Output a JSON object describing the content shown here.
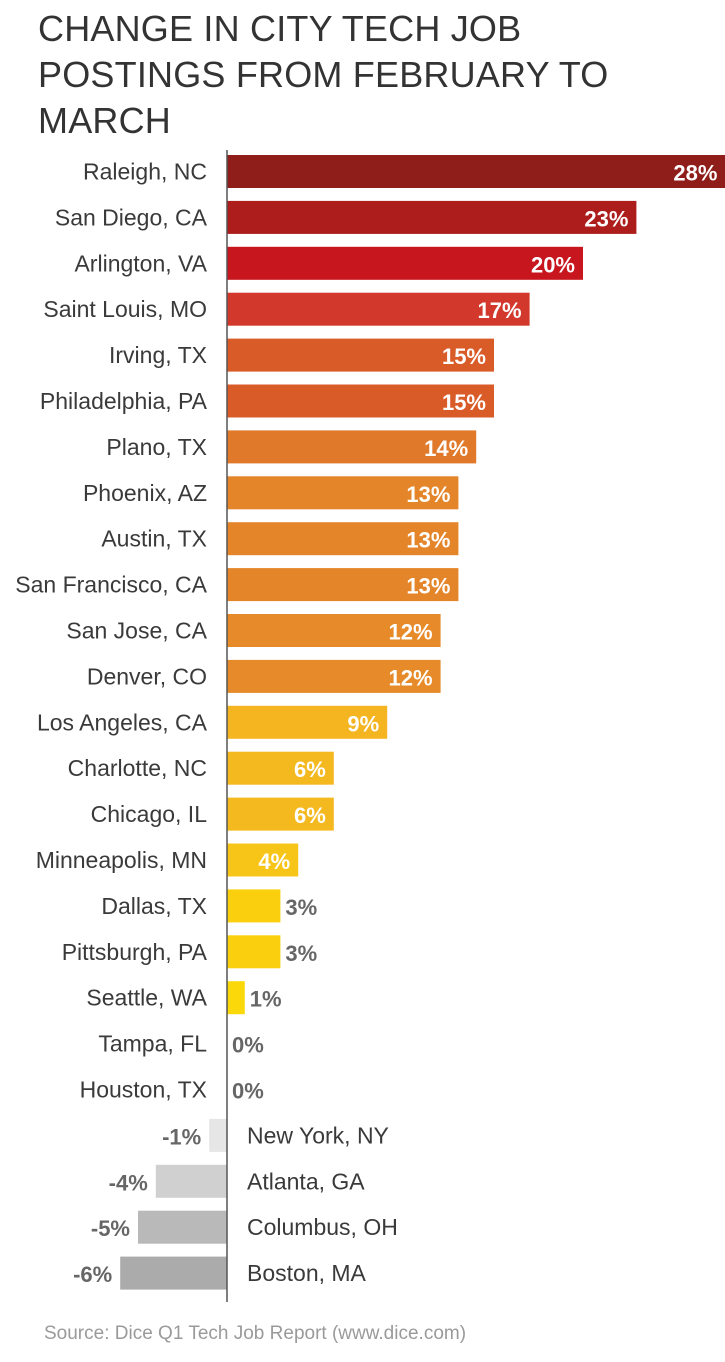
{
  "chart_data": {
    "type": "bar",
    "orientation": "horizontal",
    "title": "CHANGE IN CITY TECH JOB POSTINGS FROM FEBRUARY TO MARCH",
    "source": "Source: Dice Q1 Tech Job Report (www.dice.com)",
    "unit": "%",
    "grid": false,
    "xlim": [
      -6,
      28
    ],
    "categories": [
      "Raleigh, NC",
      "San Diego, CA",
      "Arlington, VA",
      "Saint Louis, MO",
      "Irving, TX",
      "Philadelphia, PA",
      "Plano, TX",
      "Phoenix, AZ",
      "Austin, TX",
      "San Francisco, CA",
      "San Jose, CA",
      "Denver, CO",
      "Los Angeles, CA",
      "Charlotte, NC",
      "Chicago, IL",
      "Minneapolis, MN",
      "Dallas, TX",
      "Pittsburgh, PA",
      "Seattle, WA",
      "Tampa, FL",
      "Houston, TX",
      "New York, NY",
      "Atlanta, GA",
      "Columbus, OH",
      "Boston, MA"
    ],
    "values": [
      28,
      23,
      20,
      17,
      15,
      15,
      14,
      13,
      13,
      13,
      12,
      12,
      9,
      6,
      6,
      4,
      3,
      3,
      1,
      0,
      0,
      -1,
      -4,
      -5,
      -6
    ],
    "value_labels": [
      "28%",
      "23%",
      "20%",
      "17%",
      "15%",
      "15%",
      "14%",
      "13%",
      "13%",
      "13%",
      "12%",
      "12%",
      "9%",
      "6%",
      "6%",
      "4%",
      "3%",
      "3%",
      "1%",
      "0%",
      "0%",
      "-1%",
      "-4%",
      "-5%",
      "-6%"
    ],
    "colors": [
      "#8f1d19",
      "#ac1d1b",
      "#c8161e",
      "#d2392c",
      "#d95b28",
      "#d95b28",
      "#e1792a",
      "#e4852a",
      "#e4852a",
      "#e4852a",
      "#e68a2a",
      "#e68a2a",
      "#f5b520",
      "#f5b920",
      "#f5b920",
      "#f7c418",
      "#fad00e",
      "#fad00e",
      "#fbd80a",
      "#fbd80a",
      "#fbd80a",
      "#e6e6e6",
      "#d0d0d0",
      "#b9b9b9",
      "#ababab"
    ]
  }
}
